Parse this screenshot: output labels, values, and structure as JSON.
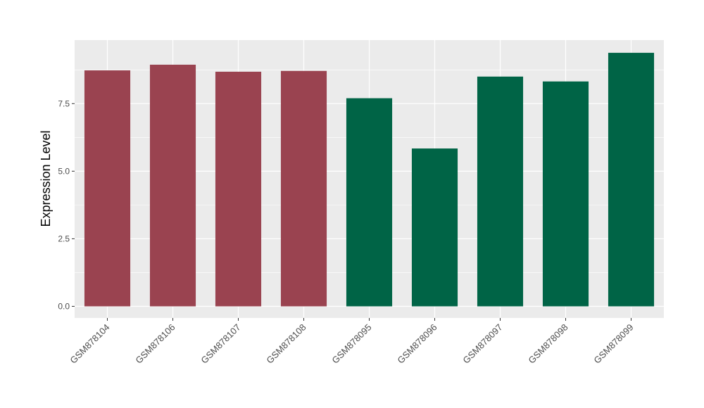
{
  "chart_data": {
    "type": "bar",
    "title": "",
    "xlabel": "",
    "ylabel": "Expression Level",
    "categories": [
      "GSM878104",
      "GSM878106",
      "GSM878107",
      "GSM878108",
      "GSM878095",
      "GSM878096",
      "GSM878097",
      "GSM878098",
      "GSM878099"
    ],
    "values": [
      8.73,
      8.94,
      8.68,
      8.71,
      7.7,
      5.84,
      8.5,
      8.32,
      9.38
    ],
    "bar_colors": [
      "#9a4350",
      "#9a4350",
      "#9a4350",
      "#9a4350",
      "#006446",
      "#006446",
      "#006446",
      "#006446",
      "#006446"
    ],
    "ylim": [
      -0.43,
      9.85
    ],
    "yticks": [
      0,
      2.5,
      5,
      7.5
    ],
    "ytick_labels": [
      "0.0",
      "2.5",
      "5.0",
      "7.5"
    ],
    "grid": true,
    "panel_background": "#ebebeb"
  }
}
